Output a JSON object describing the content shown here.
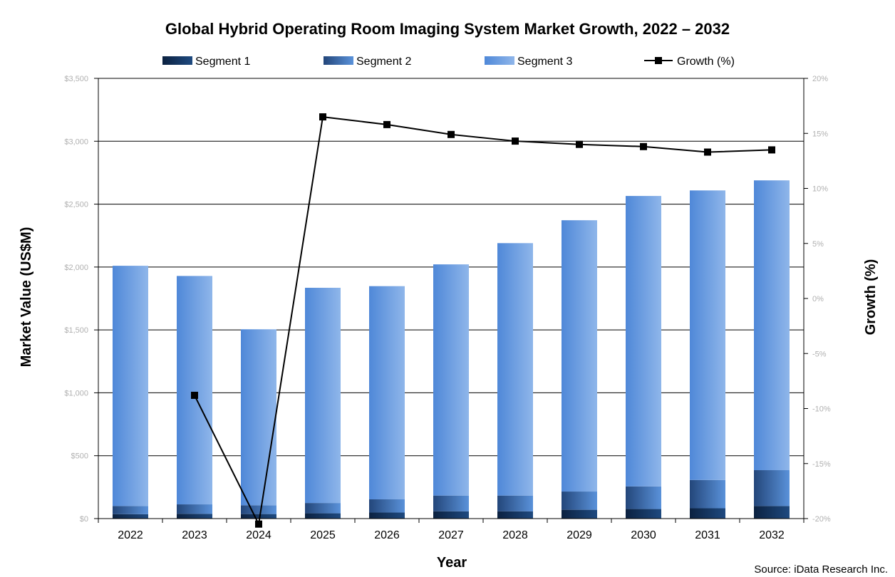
{
  "chart_data": {
    "type": "bar",
    "stacked": true,
    "title": "Global Hybrid Operating Room Imaging System Market Growth, 2022 – 2032",
    "xlabel": "Year",
    "ylabel": "Market Value (US$M)",
    "y2label": "Growth (%)",
    "categories": [
      "2022",
      "2023",
      "2024",
      "2025",
      "2026",
      "2027",
      "2028",
      "2029",
      "2030",
      "2031",
      "2032"
    ],
    "ylim": [
      0,
      3500
    ],
    "y_ticks": [
      "$0",
      "$500",
      "$1,000",
      "$1,500",
      "$2,000",
      "$2,500",
      "$3,000",
      "$3,500"
    ],
    "y2lim": [
      -20,
      20
    ],
    "y2_ticks": [
      "-20%",
      "-15%",
      "-10%",
      "-5%",
      "0%",
      "5%",
      "10%",
      "15%",
      "20%"
    ],
    "series": [
      {
        "name": "Segment 1",
        "color": "#0f2a4a",
        "values": [
          35,
          38,
          36,
          42,
          48,
          58,
          58,
          70,
          76,
          82,
          100
        ]
      },
      {
        "name": "Segment 2",
        "color": "#3f79c8",
        "values": [
          65,
          75,
          70,
          82,
          105,
          125,
          125,
          145,
          180,
          225,
          285
        ]
      },
      {
        "name": "Segment 3",
        "color": "#6fa0e0",
        "values": [
          1910,
          1816,
          1399,
          1711,
          1695,
          1838,
          2007,
          2157,
          2309,
          2302,
          2304
        ]
      }
    ],
    "line_series": {
      "name": "Growth (%)",
      "axis": "secondary",
      "values": [
        null,
        -8.8,
        -20.5,
        16.5,
        15.8,
        14.9,
        14.3,
        14.0,
        13.8,
        13.3,
        13.5
      ]
    },
    "grid": true,
    "legend": "top",
    "source": "Source: iData Research Inc."
  }
}
